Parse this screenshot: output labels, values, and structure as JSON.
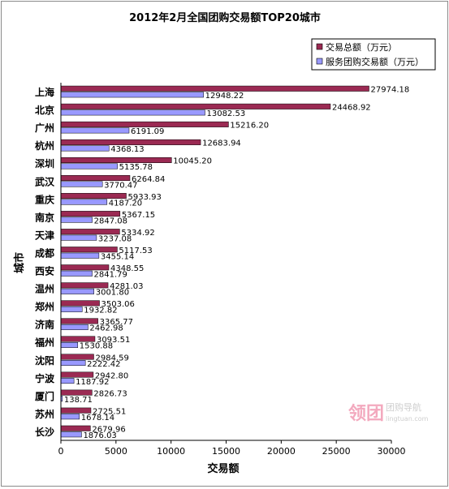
{
  "chart_data": {
    "type": "bar",
    "title": "2012年2月全国团购交易额TOP20城市",
    "xlabel": "交易额",
    "ylabel": "城市",
    "xlim": [
      0,
      30000
    ],
    "xticks": [
      "0",
      "5000",
      "10000",
      "15000",
      "20000",
      "25000",
      "30000"
    ],
    "categories": [
      "上海",
      "北京",
      "广州",
      "杭州",
      "深圳",
      "武汉",
      "重庆",
      "南京",
      "天津",
      "成都",
      "西安",
      "温州",
      "郑州",
      "济南",
      "福州",
      "沈阳",
      "宁波",
      "厦门",
      "苏州",
      "长沙"
    ],
    "series": [
      {
        "name": "交易总额（万元）",
        "color": "#9b2a53",
        "values": [
          27974.18,
          24468.92,
          15216.2,
          12683.94,
          10045.2,
          6264.84,
          5933.93,
          5367.15,
          5334.92,
          5117.53,
          4348.55,
          4281.03,
          3503.06,
          3365.77,
          3093.51,
          2984.59,
          2942.8,
          2826.73,
          2725.51,
          2679.96
        ],
        "labels": [
          "27974.18",
          "24468.92",
          "15216.20",
          "12683.94",
          "10045.20",
          "6264.84",
          "5933.93",
          "5367.15",
          "5334.92",
          "5117.53",
          "4348.55",
          "4281.03",
          "3503.06",
          "3365.77",
          "3093.51",
          "2984.59",
          "2942.80",
          "2826.73",
          "2725.51",
          "2679.96"
        ]
      },
      {
        "name": "服务团购交易额（万元）",
        "color": "#9999ff",
        "values": [
          12948.22,
          13082.53,
          6191.09,
          4368.13,
          5135.78,
          3770.47,
          4187.2,
          2847.08,
          3237.08,
          3455.14,
          2841.79,
          3001.8,
          1932.82,
          2462.98,
          1530.88,
          2222.42,
          1187.92,
          138.71,
          1678.14,
          1876.03
        ],
        "labels": [
          "12948.22",
          "13082.53",
          "6191.09",
          "4368.13",
          "5135.78",
          "3770.47",
          "4187.20",
          "2847.08",
          "3237.08",
          "3455.14",
          "2841.79",
          "3001.80",
          "1932.82",
          "2462.98",
          "1530.88",
          "2222.42",
          "1187.92",
          "138.71",
          "1678.14",
          "1876.03"
        ]
      }
    ],
    "legend_position": "top-right",
    "grid": false
  },
  "watermark": {
    "logo_text": "领团",
    "tagline": "团购导航",
    "url": "lingtuan.com"
  }
}
